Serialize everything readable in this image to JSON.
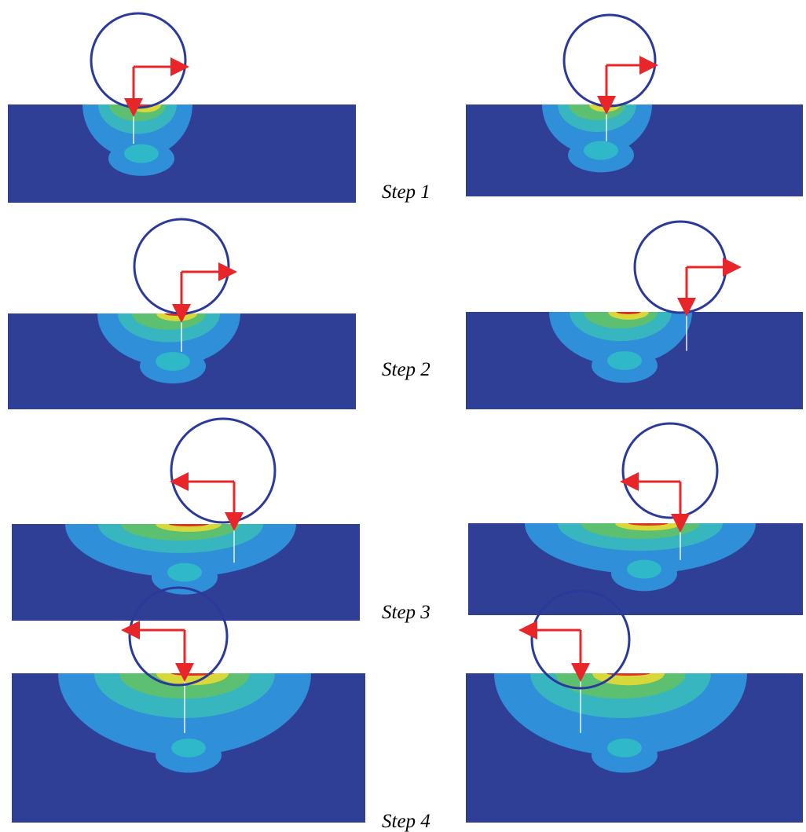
{
  "steps": [
    {
      "label": "Step 1"
    },
    {
      "label": "Step 2"
    },
    {
      "label": "Step 3"
    },
    {
      "label": "Step 4"
    }
  ]
}
